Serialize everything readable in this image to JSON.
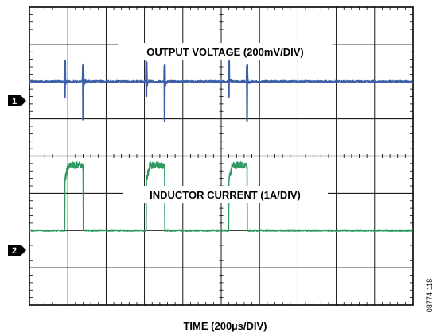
{
  "chart_data": {
    "type": "line",
    "title": "",
    "xlabel": "TIME (200µs/DIV)",
    "ylabel": "",
    "figure_id": "08774-118",
    "grid": true,
    "divisions": {
      "x": 10,
      "y": 8
    },
    "xlim": [
      0,
      2000
    ],
    "x_unit": "µs",
    "channels": [
      {
        "marker": "1",
        "label": "OUTPUT VOLTAGE (200mV/DIV)",
        "scale": "200mV/DIV",
        "color": "#3b5fa8",
        "ground_div": 2.0,
        "baseline_div": 0.0,
        "events_us": [
          {
            "t": 185,
            "type": "spike",
            "up": 0.55,
            "down": 0.4
          },
          {
            "t": 280,
            "type": "spike",
            "up": 0.45,
            "down": 1.05
          },
          {
            "t": 610,
            "type": "spike",
            "up": 0.55,
            "down": 0.4
          },
          {
            "t": 705,
            "type": "spike",
            "up": 0.45,
            "down": 1.05
          },
          {
            "t": 1040,
            "type": "spike",
            "up": 0.55,
            "down": 0.4
          },
          {
            "t": 1135,
            "type": "spike",
            "up": 0.45,
            "down": 1.05
          }
        ]
      },
      {
        "marker": "2",
        "label": "INDUCTOR CURRENT (1A/DIV)",
        "scale": "1A/DIV",
        "color": "#2e9a62",
        "ground_div": 6.0,
        "baseline_div": 0.0,
        "pulse_high_div": 1.75,
        "pulses_us": [
          {
            "start": 185,
            "end": 280
          },
          {
            "start": 610,
            "end": 705
          },
          {
            "start": 1040,
            "end": 1135
          }
        ]
      }
    ]
  }
}
